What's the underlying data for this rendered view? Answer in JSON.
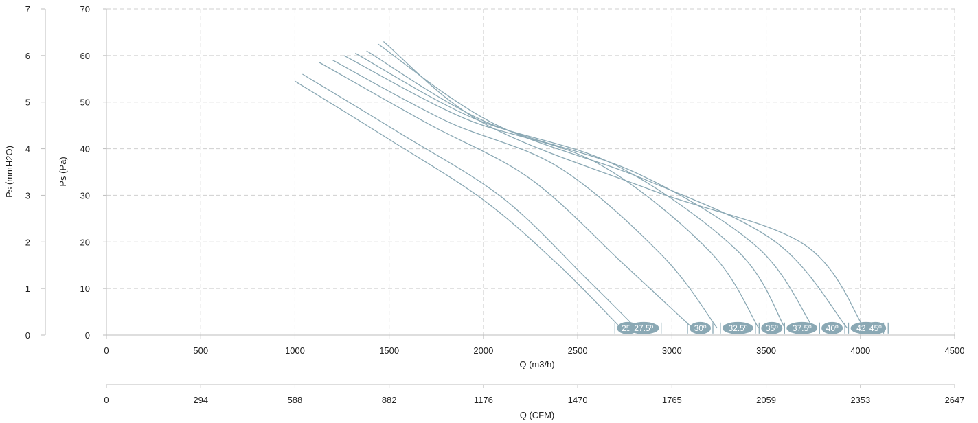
{
  "chart_data": {
    "type": "line",
    "x_primary": {
      "label": "Q (m3/h)",
      "min": 0,
      "max": 4500,
      "ticks": [
        0,
        500,
        1000,
        1500,
        2000,
        2500,
        3000,
        3500,
        4000,
        4500
      ]
    },
    "x_secondary": {
      "label": "Q (CFM)",
      "tick_labels": [
        "0",
        "294",
        "588",
        "882",
        "1176",
        "1470",
        "1765",
        "2059",
        "2353",
        "2647"
      ]
    },
    "y_primary": {
      "label": "Ps (Pa)",
      "min": 0,
      "max": 70,
      "ticks": [
        0,
        10,
        20,
        30,
        40,
        50,
        60,
        70
      ]
    },
    "y_secondary": {
      "label": "Ps (mmH2O)",
      "tick_labels": [
        "0",
        "1",
        "2",
        "3",
        "4",
        "5",
        "6",
        "7"
      ]
    },
    "grid": true,
    "colors": {
      "curve": "#8aa8b4",
      "bubble": "#8aa8b4",
      "grid": "#cfcfcf",
      "axis": "#bdbdbd"
    },
    "series": [
      {
        "name": "25º",
        "label_x": 2765,
        "points": [
          [
            1000,
            54.5
          ],
          [
            1500,
            42
          ],
          [
            2000,
            29
          ],
          [
            2400,
            15
          ],
          [
            2730,
            1.5
          ]
        ]
      },
      {
        "name": "27.5º",
        "label_x": 2850,
        "points": [
          [
            1040,
            56
          ],
          [
            1550,
            43.5
          ],
          [
            2100,
            29.5
          ],
          [
            2550,
            12
          ],
          [
            2810,
            1.5
          ]
        ]
      },
      {
        "name": "30º",
        "label_x": 3150,
        "points": [
          [
            1130,
            58.5
          ],
          [
            1700,
            45.5
          ],
          [
            2250,
            33.5
          ],
          [
            2750,
            15
          ],
          [
            3110,
            1.5
          ]
        ]
      },
      {
        "name": "32.5º",
        "label_x": 3350,
        "points": [
          [
            1200,
            59
          ],
          [
            1800,
            46
          ],
          [
            2400,
            36
          ],
          [
            2950,
            17
          ],
          [
            3240,
            1.5
          ]
        ]
      },
      {
        "name": "35º",
        "label_x": 3530,
        "points": [
          [
            1260,
            60
          ],
          [
            1900,
            46.5
          ],
          [
            2600,
            37
          ],
          [
            3200,
            18
          ],
          [
            3460,
            1.5
          ]
        ]
      },
      {
        "name": "37.5º",
        "label_x": 3690,
        "points": [
          [
            1320,
            60.5
          ],
          [
            1950,
            46.5
          ],
          [
            2700,
            36.5
          ],
          [
            3350,
            18
          ],
          [
            3600,
            1.5
          ]
        ]
      },
      {
        "name": "40º",
        "label_x": 3850,
        "points": [
          [
            1380,
            61
          ],
          [
            2000,
            46
          ],
          [
            2800,
            35
          ],
          [
            3450,
            19
          ],
          [
            3750,
            1.5
          ]
        ]
      },
      {
        "name": "42.5º",
        "label_x": 4030,
        "points": [
          [
            1440,
            62.5
          ],
          [
            2050,
            45.5
          ],
          [
            2850,
            33.5
          ],
          [
            3550,
            20
          ],
          [
            3930,
            1.5
          ]
        ]
      },
      {
        "name": "45º",
        "label_x": 4080,
        "points": [
          [
            1470,
            63
          ],
          [
            2000,
            45.5
          ],
          [
            2900,
            31
          ],
          [
            3700,
            19.5
          ],
          [
            4020,
            1.5
          ]
        ]
      }
    ]
  }
}
